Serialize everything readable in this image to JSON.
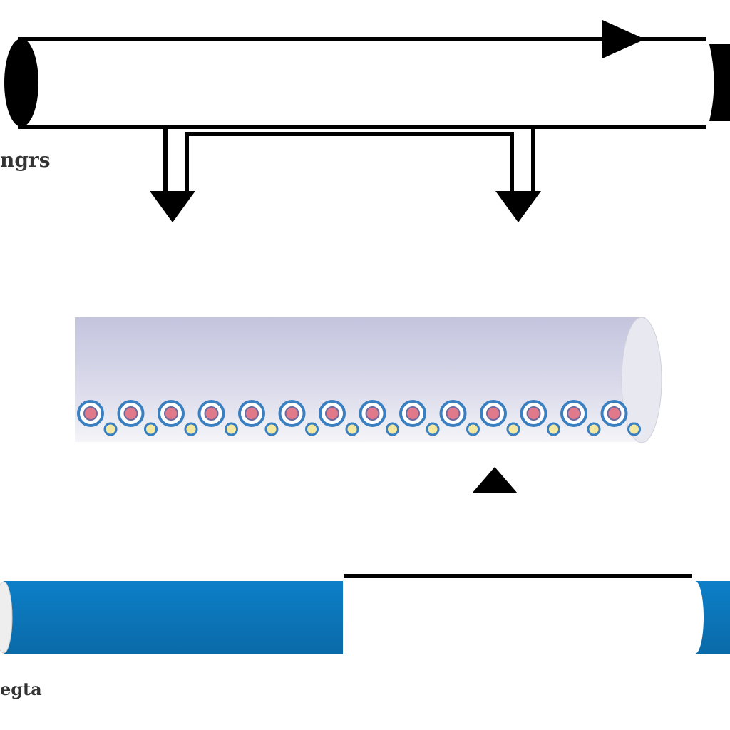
{
  "labels": {
    "top_left": "ngrs",
    "bottom_left": "egta"
  }
}
